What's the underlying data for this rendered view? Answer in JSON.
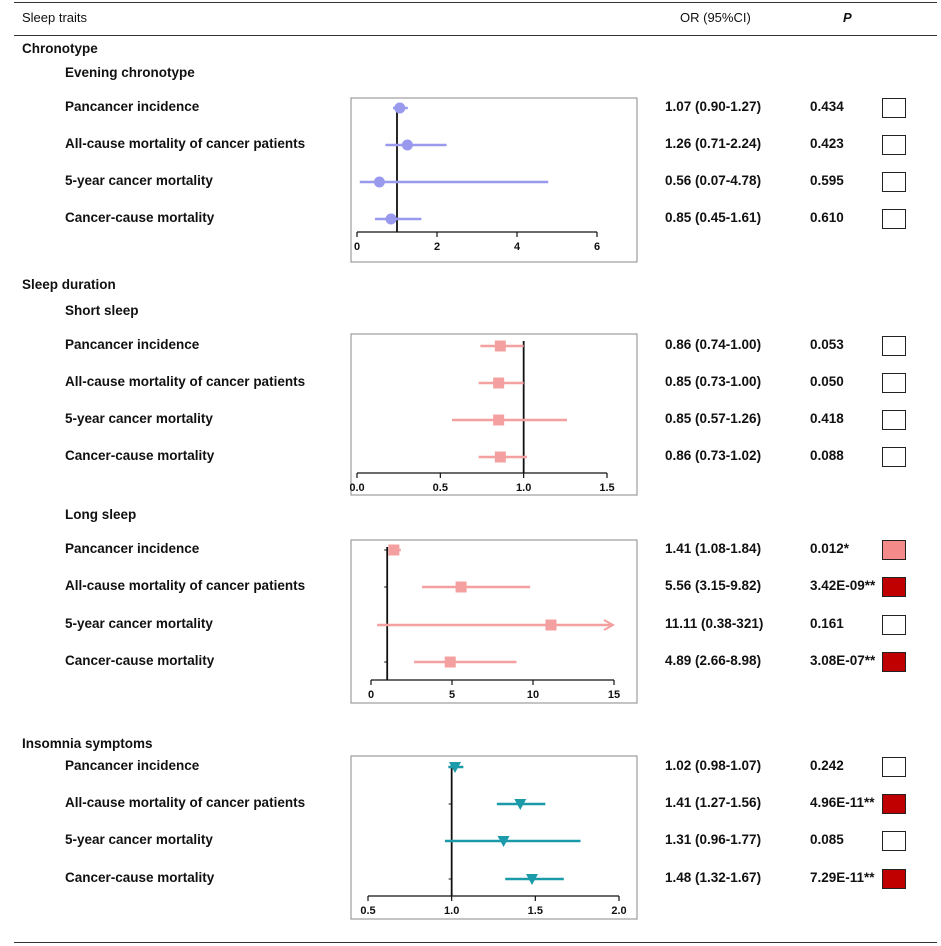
{
  "header": {
    "col_traits": "Sleep traits",
    "col_or": "OR (95%CI)",
    "col_p": "P"
  },
  "colors": {
    "chronotype": "#9999ee",
    "sleep_duration": "#f4a0a0",
    "insomnia": "#1b9aaa",
    "sig_nominal": "#f58a8a",
    "sig_strong": "#c00000",
    "sig_none": "#ffffff"
  },
  "sections": {
    "chronotype": {
      "title": "Chronotype",
      "subtitle": "Evening chronotype"
    },
    "sleep_duration": {
      "title": "Sleep duration",
      "short_title": "Short sleep",
      "long_title": "Long sleep"
    },
    "insomnia": {
      "title": "Insomnia symptoms"
    }
  },
  "chart_data": [
    {
      "type": "forest",
      "group": "Evening chronotype",
      "marker": "circle",
      "color": "#9999ee",
      "xlim": [
        0,
        6
      ],
      "xticks": [
        0,
        2,
        4,
        6
      ],
      "reference": 1,
      "rows": [
        {
          "label": "Pancancer incidence",
          "or": 1.07,
          "lo": 0.9,
          "hi": 1.27,
          "or_text": "1.07 (0.90-1.27)",
          "p": "0.434",
          "sig": "none"
        },
        {
          "label": "All-cause mortality of cancer patients",
          "or": 1.26,
          "lo": 0.71,
          "hi": 2.24,
          "or_text": "1.26 (0.71-2.24)",
          "p": "0.423",
          "sig": "none"
        },
        {
          "label": "5-year cancer mortality",
          "or": 0.56,
          "lo": 0.07,
          "hi": 4.78,
          "or_text": "0.56 (0.07-4.78)",
          "p": "0.595",
          "sig": "none"
        },
        {
          "label": "Cancer-cause mortality",
          "or": 0.85,
          "lo": 0.45,
          "hi": 1.61,
          "or_text": "0.85 (0.45-1.61)",
          "p": "0.610",
          "sig": "none"
        }
      ]
    },
    {
      "type": "forest",
      "group": "Short sleep",
      "marker": "square",
      "color": "#f4a0a0",
      "xlim": [
        0,
        1.5
      ],
      "xticks": [
        0.0,
        0.5,
        1.0,
        1.5
      ],
      "tick_labels": [
        "0.0",
        "0.5",
        "1.0",
        "1.5"
      ],
      "reference": 1,
      "rows": [
        {
          "label": "Pancancer incidence",
          "or": 0.86,
          "lo": 0.74,
          "hi": 1.0,
          "or_text": "0.86 (0.74-1.00)",
          "p": "0.053",
          "sig": "none"
        },
        {
          "label": "All-cause mortality of cancer patients",
          "or": 0.85,
          "lo": 0.73,
          "hi": 1.0,
          "or_text": "0.85 (0.73-1.00)",
          "p": "0.050",
          "sig": "none"
        },
        {
          "label": "5-year cancer mortality",
          "or": 0.85,
          "lo": 0.57,
          "hi": 1.26,
          "or_text": "0.85 (0.57-1.26)",
          "p": "0.418",
          "sig": "none"
        },
        {
          "label": "Cancer-cause mortality",
          "or": 0.86,
          "lo": 0.73,
          "hi": 1.02,
          "or_text": "0.86 (0.73-1.02)",
          "p": "0.088",
          "sig": "none"
        }
      ]
    },
    {
      "type": "forest",
      "group": "Long sleep",
      "marker": "square",
      "color": "#f4a0a0",
      "xlim": [
        0,
        15
      ],
      "xticks": [
        0,
        5,
        10,
        15
      ],
      "reference": 1,
      "rows": [
        {
          "label": "Pancancer incidence",
          "or": 1.41,
          "lo": 1.08,
          "hi": 1.84,
          "or_text": "1.41 (1.08-1.84)",
          "p": "0.012*",
          "sig": "nominal"
        },
        {
          "label": "All-cause mortality of cancer patients",
          "or": 5.56,
          "lo": 3.15,
          "hi": 9.82,
          "or_text": "5.56 (3.15-9.82)",
          "p": "3.42E-09**",
          "sig": "strong"
        },
        {
          "label": "5-year cancer mortality",
          "or": 11.11,
          "lo": 0.38,
          "hi": 321,
          "or_text": "11.11 (0.38-321)",
          "p": "0.161",
          "sig": "none",
          "arrow": true
        },
        {
          "label": "Cancer-cause mortality",
          "or": 4.89,
          "lo": 2.66,
          "hi": 8.98,
          "or_text": "4.89 (2.66-8.98)",
          "p": "3.08E-07**",
          "sig": "strong"
        }
      ]
    },
    {
      "type": "forest",
      "group": "Insomnia symptoms",
      "marker": "triangle-down",
      "color": "#1b9aaa",
      "xlim": [
        0.5,
        2.0
      ],
      "xticks": [
        0.5,
        1.0,
        1.5,
        2.0
      ],
      "tick_labels": [
        "0.5",
        "1.0",
        "1.5",
        "2.0"
      ],
      "reference": 1,
      "rows": [
        {
          "label": "Pancancer incidence",
          "or": 1.02,
          "lo": 0.98,
          "hi": 1.07,
          "or_text": "1.02 (0.98-1.07)",
          "p": "0.242",
          "sig": "none"
        },
        {
          "label": "All-cause mortality of cancer patients",
          "or": 1.41,
          "lo": 1.27,
          "hi": 1.56,
          "or_text": "1.41 (1.27-1.56)",
          "p": "4.96E-11**",
          "sig": "strong"
        },
        {
          "label": "5-year cancer mortality",
          "or": 1.31,
          "lo": 0.96,
          "hi": 1.77,
          "or_text": "1.31 (0.96-1.77)",
          "p": "0.085",
          "sig": "none"
        },
        {
          "label": "Cancer-cause mortality",
          "or": 1.48,
          "lo": 1.32,
          "hi": 1.67,
          "or_text": "1.48 (1.32-1.67)",
          "p": "7.29E-11**",
          "sig": "strong"
        }
      ]
    }
  ]
}
